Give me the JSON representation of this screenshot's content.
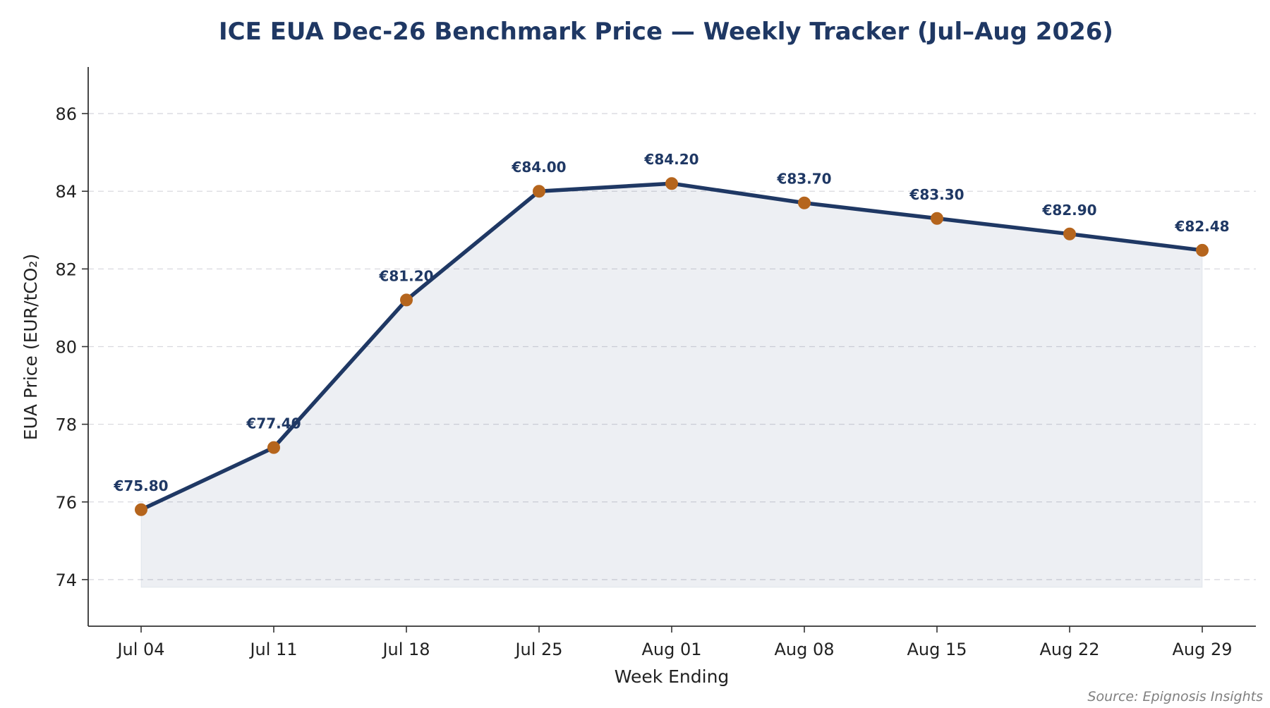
{
  "chart_data": {
    "type": "line",
    "title": "ICE EUA Dec-26 Benchmark Price — Weekly Tracker (Jul–Aug 2026)",
    "xlabel": "Week Ending",
    "ylabel": "EUA Price (EUR/tCO₂)",
    "categories": [
      "Jul 04",
      "Jul 11",
      "Jul 18",
      "Jul 25",
      "Aug 01",
      "Aug 08",
      "Aug 15",
      "Aug 22",
      "Aug 29"
    ],
    "values": [
      75.8,
      77.4,
      81.2,
      84.0,
      84.2,
      83.7,
      83.3,
      82.9,
      82.48
    ],
    "data_labels": [
      "€75.80",
      "€77.40",
      "€81.20",
      "€84.00",
      "€84.20",
      "€83.70",
      "€83.30",
      "€82.90",
      "€82.48"
    ],
    "ylim": [
      72.8,
      87.2
    ],
    "yticks": [
      74,
      76,
      78,
      80,
      82,
      84,
      86
    ],
    "area_baseline": 73.8,
    "grid": "horizontal-dashed",
    "legend": "none",
    "source": "Source: Epignosis Insights",
    "colors": {
      "line": "#1f3864",
      "marker": "#b5651d",
      "fill": "#1f3864",
      "title": "#1f3864",
      "data_label": "#1f3864",
      "source": "#808080"
    }
  }
}
